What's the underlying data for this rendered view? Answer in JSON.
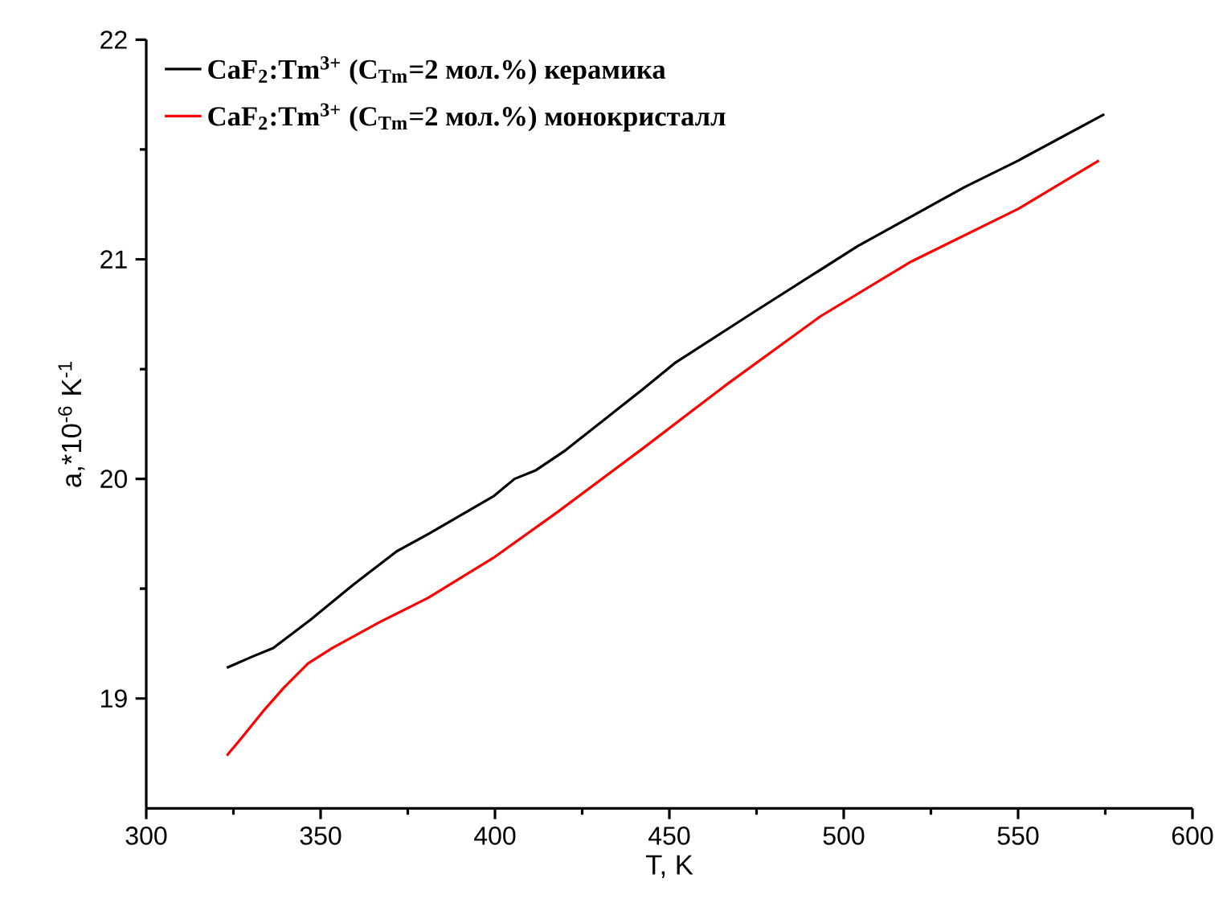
{
  "chart_data": {
    "type": "line",
    "xlabel": "T, K",
    "ylabel": "a,*10$^{-6}$ K$^{-1}$",
    "xlim": [
      300,
      600
    ],
    "ylim": [
      18.5,
      22
    ],
    "xticks": [
      300,
      350,
      400,
      450,
      500,
      550,
      600
    ],
    "yticks": [
      19,
      20,
      21,
      22
    ],
    "legend": "top left",
    "grid": false,
    "marker": "none",
    "line_style": "solid",
    "series": [
      {
        "name": "CaF$_{2}$:Tm$^{3+}$ (C$_{Tm}$=2 мол.%) керамика",
        "color": "#000000",
        "x": [
          323.1,
          330.3,
          336.4,
          347.2,
          359.5,
          371.8,
          381,
          399.5,
          405.6,
          411.8,
          420.2,
          442.5,
          451.8,
          473.3,
          504,
          534.8,
          550.1,
          574.7
        ],
        "values": [
          19.14,
          19.19,
          19.23,
          19.36,
          19.52,
          19.67,
          19.75,
          19.92,
          20.0,
          20.04,
          20.13,
          20.41,
          20.53,
          20.75,
          21.06,
          21.33,
          21.45,
          21.66
        ]
      },
      {
        "name": "CaF$_{2}$:Tm$^{3+}$ (C$_{Tm}$=2 мол.%) монокристалл",
        "color": "#ff0000",
        "x": [
          323.1,
          327.3,
          333.4,
          339.5,
          346.4,
          353.4,
          367.2,
          381,
          399.5,
          418,
          442.5,
          465.6,
          493.3,
          519.4,
          550.1,
          573.2
        ],
        "values": [
          18.74,
          18.82,
          18.94,
          19.05,
          19.16,
          19.23,
          19.35,
          19.46,
          19.64,
          19.85,
          20.14,
          20.42,
          20.74,
          20.99,
          21.23,
          21.45
        ]
      }
    ]
  }
}
